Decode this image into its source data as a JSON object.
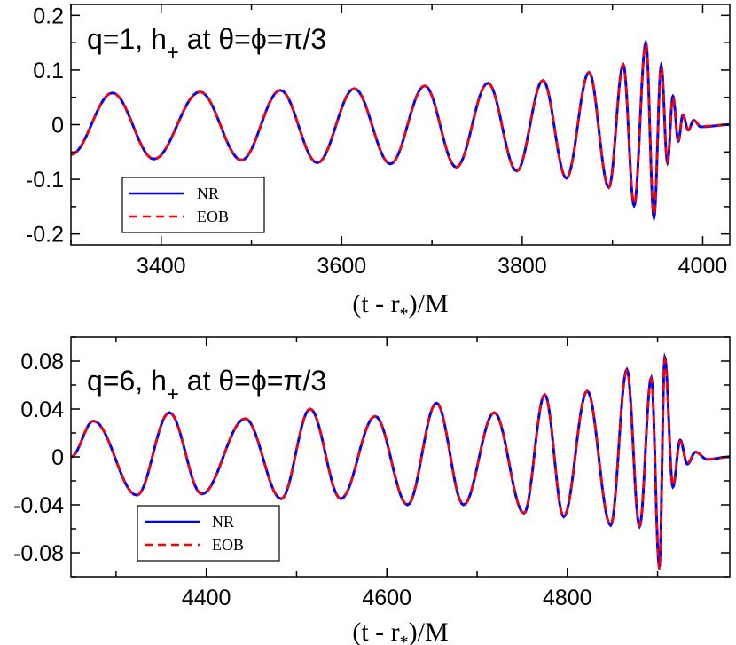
{
  "chart_data": [
    {
      "type": "line",
      "title": "q=1,  h",
      "title_sub": "+",
      "title_tail": " at θ=ϕ=π/3",
      "xlabel": "(t - r",
      "xlabel_sub": "*",
      "xlabel_tail": ")/M",
      "xlim": [
        3300,
        4030
      ],
      "ylim": [
        -0.22,
        0.22
      ],
      "xticks": [
        3400,
        3600,
        3800,
        4000
      ],
      "xtick_labels": [
        "3400",
        "3600",
        "3800",
        "4000"
      ],
      "yticks": [
        0.2,
        0.1,
        0,
        -0.1,
        -0.2
      ],
      "ytick_labels": [
        "0.2",
        "0.1",
        "0",
        "-0.1",
        "-0.2"
      ],
      "legend_position": "bottom-left",
      "series": [
        {
          "name": "NR",
          "color": "#0000ff",
          "style": "solid",
          "x": [
            3300,
            3346,
            3392,
            3443,
            3489,
            3532,
            3573,
            3614,
            3654,
            3692,
            3727,
            3762,
            3794,
            3823,
            3849,
            3874,
            3896,
            3912,
            3924,
            3937,
            3946,
            3954,
            3961,
            3967,
            3973,
            3978,
            3984,
            3990,
            3998,
            4030
          ],
          "y": [
            -0.055,
            0.058,
            -0.063,
            0.06,
            -0.065,
            0.063,
            -0.07,
            0.066,
            -0.072,
            0.071,
            -0.078,
            0.076,
            -0.085,
            0.081,
            -0.098,
            0.096,
            -0.115,
            0.11,
            -0.148,
            0.15,
            -0.17,
            0.108,
            -0.07,
            0.052,
            -0.03,
            0.018,
            -0.01,
            0.008,
            -0.004,
            0
          ]
        },
        {
          "name": "EOB",
          "color": "#ff0000",
          "style": "dashed",
          "x": [
            3300,
            3346,
            3392,
            3443,
            3489,
            3532,
            3573,
            3614,
            3654,
            3692,
            3727,
            3762,
            3794,
            3823,
            3849,
            3874,
            3896,
            3912,
            3924,
            3937,
            3946,
            3954,
            3961,
            3967,
            3973,
            3978,
            3984,
            3990,
            3998,
            4030
          ],
          "y": [
            -0.055,
            0.058,
            -0.063,
            0.06,
            -0.065,
            0.063,
            -0.07,
            0.066,
            -0.072,
            0.071,
            -0.078,
            0.076,
            -0.085,
            0.081,
            -0.098,
            0.096,
            -0.115,
            0.11,
            -0.145,
            0.148,
            -0.165,
            0.105,
            -0.068,
            0.05,
            -0.028,
            0.017,
            -0.009,
            0.007,
            -0.003,
            0
          ]
        }
      ]
    },
    {
      "type": "line",
      "title": "q=6,  h",
      "title_sub": "+",
      "title_tail": " at θ=ϕ=π/3",
      "xlabel": "(t - r",
      "xlabel_sub": "*",
      "xlabel_tail": ")/M",
      "xlim": [
        4250,
        4980
      ],
      "ylim": [
        -0.1,
        0.1
      ],
      "xticks": [
        4400,
        4600,
        4800
      ],
      "xtick_labels": [
        "4400",
        "4600",
        "4800"
      ],
      "yticks": [
        0.08,
        0.04,
        0,
        -0.04,
        -0.08
      ],
      "ytick_labels": [
        "0.08",
        "0.04",
        "0",
        "-0.04",
        "-0.08"
      ],
      "legend_position": "bottom-left",
      "series": [
        {
          "name": "NR",
          "color": "#0000ff",
          "style": "solid",
          "x": [
            4250,
            4275,
            4323,
            4359,
            4395,
            4443,
            4483,
            4515,
            4549,
            4587,
            4623,
            4655,
            4685,
            4719,
            4752,
            4775,
            4796,
            4822,
            4848,
            4866,
            4880,
            4893,
            4902,
            4908,
            4917,
            4925,
            4933,
            4942,
            4955,
            4980
          ],
          "y": [
            0,
            0.03,
            -0.032,
            0.037,
            -0.031,
            0.032,
            -0.035,
            0.04,
            -0.035,
            0.034,
            -0.04,
            0.045,
            -0.04,
            0.037,
            -0.047,
            0.052,
            -0.05,
            0.055,
            -0.057,
            0.073,
            -0.058,
            0.066,
            -0.092,
            0.083,
            -0.025,
            0.014,
            -0.006,
            0.004,
            -0.002,
            0
          ]
        },
        {
          "name": "EOB",
          "color": "#ff0000",
          "style": "dashed",
          "x": [
            4250,
            4275,
            4323,
            4359,
            4395,
            4443,
            4483,
            4515,
            4549,
            4587,
            4623,
            4655,
            4685,
            4719,
            4752,
            4775,
            4796,
            4822,
            4848,
            4866,
            4880,
            4893,
            4902,
            4908,
            4917,
            4925,
            4933,
            4942,
            4955,
            4980
          ],
          "y": [
            0,
            0.03,
            -0.032,
            0.037,
            -0.031,
            0.032,
            -0.035,
            0.04,
            -0.035,
            0.034,
            -0.04,
            0.045,
            -0.04,
            0.037,
            -0.047,
            0.052,
            -0.05,
            0.055,
            -0.057,
            0.072,
            -0.057,
            0.065,
            -0.094,
            0.081,
            -0.024,
            0.013,
            -0.005,
            0.004,
            -0.002,
            0
          ]
        }
      ]
    }
  ]
}
